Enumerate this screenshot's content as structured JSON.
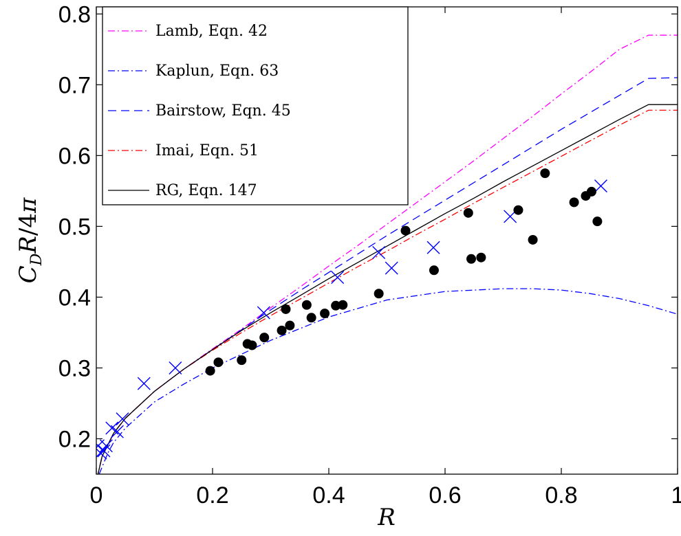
{
  "chart_data": {
    "type": "line",
    "xlabel": "R",
    "ylabel": "C_D R/4π",
    "ylabel_parts": {
      "c": "C",
      "d": "D",
      "r": "R",
      "slash": "/4",
      "pi": "π"
    },
    "xlim": [
      0,
      1
    ],
    "ylim": [
      0.15,
      0.81
    ],
    "xticks": [
      0,
      0.2,
      0.4,
      0.6,
      0.8,
      1
    ],
    "xtick_labels": [
      "0",
      "0.2",
      "0.4",
      "0.6",
      "0.8",
      "1"
    ],
    "yticks": [
      0.2,
      0.3,
      0.4,
      0.5,
      0.6,
      0.7,
      0.8
    ],
    "ytick_labels": [
      "0.2",
      "0.3",
      "0.4",
      "0.5",
      "0.6",
      "0.7",
      "0.8"
    ],
    "grid": false,
    "legend_position": "top-left",
    "series": [
      {
        "name": "Lamb, Eqn. 42",
        "color": "#ff00ff",
        "style": "dashdot",
        "x": [
          0.001,
          0.01,
          0.03,
          0.05,
          0.1,
          0.15,
          0.2,
          0.25,
          0.3,
          0.35,
          0.4,
          0.45,
          0.5,
          0.55,
          0.6,
          0.65,
          0.7,
          0.75,
          0.8,
          0.85,
          0.9,
          0.95,
          1.0
        ],
        "y": [
          0.143,
          0.175,
          0.208,
          0.229,
          0.267,
          0.298,
          0.327,
          0.355,
          0.385,
          0.414,
          0.444,
          0.473,
          0.503,
          0.533,
          0.563,
          0.593,
          0.624,
          0.655,
          0.687,
          0.718,
          0.75,
          0.77,
          0.77
        ]
      },
      {
        "name": "Kaplun, Eqn. 63",
        "color": "#0000ff",
        "style": "dashdot",
        "x": [
          0.005,
          0.01,
          0.02,
          0.03,
          0.05,
          0.1,
          0.15,
          0.2,
          0.3,
          0.4,
          0.5,
          0.6,
          0.7,
          0.75,
          0.8,
          0.85,
          0.9,
          0.95,
          1.0
        ],
        "y": [
          0.15,
          0.16,
          0.18,
          0.195,
          0.215,
          0.252,
          0.277,
          0.3,
          0.339,
          0.372,
          0.396,
          0.408,
          0.412,
          0.412,
          0.41,
          0.405,
          0.398,
          0.388,
          0.376
        ]
      },
      {
        "name": "Bairstow, Eqn. 45",
        "color": "#0000ff",
        "style": "dashed",
        "x": [
          0.001,
          0.01,
          0.03,
          0.05,
          0.1,
          0.15,
          0.2,
          0.25,
          0.3,
          0.35,
          0.4,
          0.45,
          0.5,
          0.55,
          0.6,
          0.65,
          0.7,
          0.75,
          0.8,
          0.85,
          0.9,
          0.95,
          1.0
        ],
        "y": [
          0.143,
          0.175,
          0.208,
          0.229,
          0.267,
          0.298,
          0.326,
          0.354,
          0.382,
          0.409,
          0.435,
          0.461,
          0.487,
          0.512,
          0.537,
          0.562,
          0.587,
          0.612,
          0.637,
          0.661,
          0.685,
          0.709,
          0.71
        ]
      },
      {
        "name": "Imai, Eqn. 51",
        "color": "#ff0000",
        "style": "dashdot",
        "x": [
          0.001,
          0.01,
          0.03,
          0.05,
          0.1,
          0.15,
          0.2,
          0.25,
          0.3,
          0.35,
          0.4,
          0.45,
          0.5,
          0.55,
          0.6,
          0.65,
          0.7,
          0.75,
          0.8,
          0.85,
          0.9,
          0.95,
          1.0
        ],
        "y": [
          0.143,
          0.175,
          0.208,
          0.229,
          0.267,
          0.298,
          0.325,
          0.35,
          0.374,
          0.397,
          0.42,
          0.443,
          0.465,
          0.488,
          0.51,
          0.533,
          0.555,
          0.577,
          0.599,
          0.621,
          0.643,
          0.664,
          0.664
        ]
      },
      {
        "name": "RG, Eqn. 147",
        "color": "#000000",
        "style": "solid",
        "x": [
          0.001,
          0.01,
          0.03,
          0.05,
          0.1,
          0.15,
          0.2,
          0.25,
          0.3,
          0.35,
          0.4,
          0.45,
          0.5,
          0.55,
          0.6,
          0.65,
          0.7,
          0.75,
          0.8,
          0.85,
          0.9,
          0.95,
          1.0
        ],
        "y": [
          0.143,
          0.175,
          0.208,
          0.229,
          0.267,
          0.298,
          0.326,
          0.353,
          0.378,
          0.402,
          0.426,
          0.449,
          0.472,
          0.495,
          0.518,
          0.54,
          0.563,
          0.585,
          0.607,
          0.629,
          0.651,
          0.672,
          0.672
        ]
      }
    ],
    "markers": [
      {
        "marker": "x",
        "color": "#0000ff",
        "points": [
          [
            0.003,
            0.19
          ],
          [
            0.007,
            0.18
          ],
          [
            0.013,
            0.183
          ],
          [
            0.017,
            0.19
          ],
          [
            0.027,
            0.215
          ],
          [
            0.036,
            0.21
          ],
          [
            0.045,
            0.228
          ],
          [
            0.082,
            0.278
          ],
          [
            0.136,
            0.3
          ],
          [
            0.288,
            0.378
          ],
          [
            0.415,
            0.428
          ],
          [
            0.486,
            0.463
          ],
          [
            0.508,
            0.441
          ],
          [
            0.58,
            0.47
          ],
          [
            0.712,
            0.514
          ],
          [
            0.868,
            0.557
          ]
        ]
      },
      {
        "marker": "dot",
        "color": "#000000",
        "points": [
          [
            0.196,
            0.296
          ],
          [
            0.21,
            0.308
          ],
          [
            0.25,
            0.311
          ],
          [
            0.26,
            0.334
          ],
          [
            0.268,
            0.332
          ],
          [
            0.289,
            0.343
          ],
          [
            0.319,
            0.353
          ],
          [
            0.326,
            0.383
          ],
          [
            0.333,
            0.36
          ],
          [
            0.362,
            0.389
          ],
          [
            0.37,
            0.371
          ],
          [
            0.393,
            0.377
          ],
          [
            0.412,
            0.388
          ],
          [
            0.424,
            0.389
          ],
          [
            0.486,
            0.405
          ],
          [
            0.532,
            0.494
          ],
          [
            0.581,
            0.438
          ],
          [
            0.64,
            0.519
          ],
          [
            0.645,
            0.454
          ],
          [
            0.662,
            0.456
          ],
          [
            0.726,
            0.523
          ],
          [
            0.751,
            0.481
          ],
          [
            0.772,
            0.575
          ],
          [
            0.822,
            0.534
          ],
          [
            0.842,
            0.543
          ],
          [
            0.852,
            0.549
          ],
          [
            0.862,
            0.507
          ]
        ]
      }
    ]
  }
}
